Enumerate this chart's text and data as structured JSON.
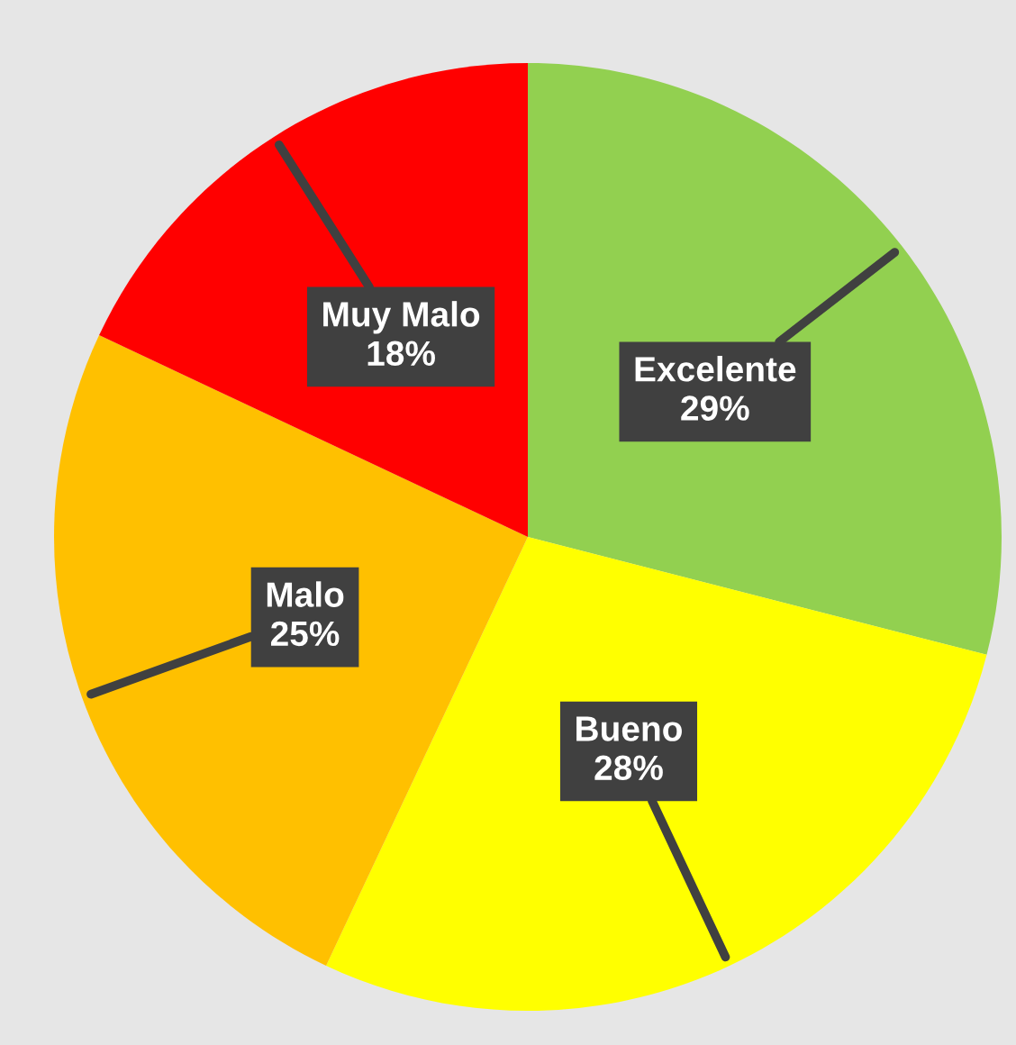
{
  "chart_data": {
    "type": "pie",
    "categories": [
      "Excelente",
      "Bueno",
      "Malo",
      "Muy Malo"
    ],
    "values": [
      29,
      28,
      25,
      18
    ],
    "colors": [
      "#92d050",
      "#ffff00",
      "#ffc000",
      "#ff0000"
    ],
    "value_labels": [
      "29%",
      "28%",
      "25%",
      "18%"
    ]
  }
}
